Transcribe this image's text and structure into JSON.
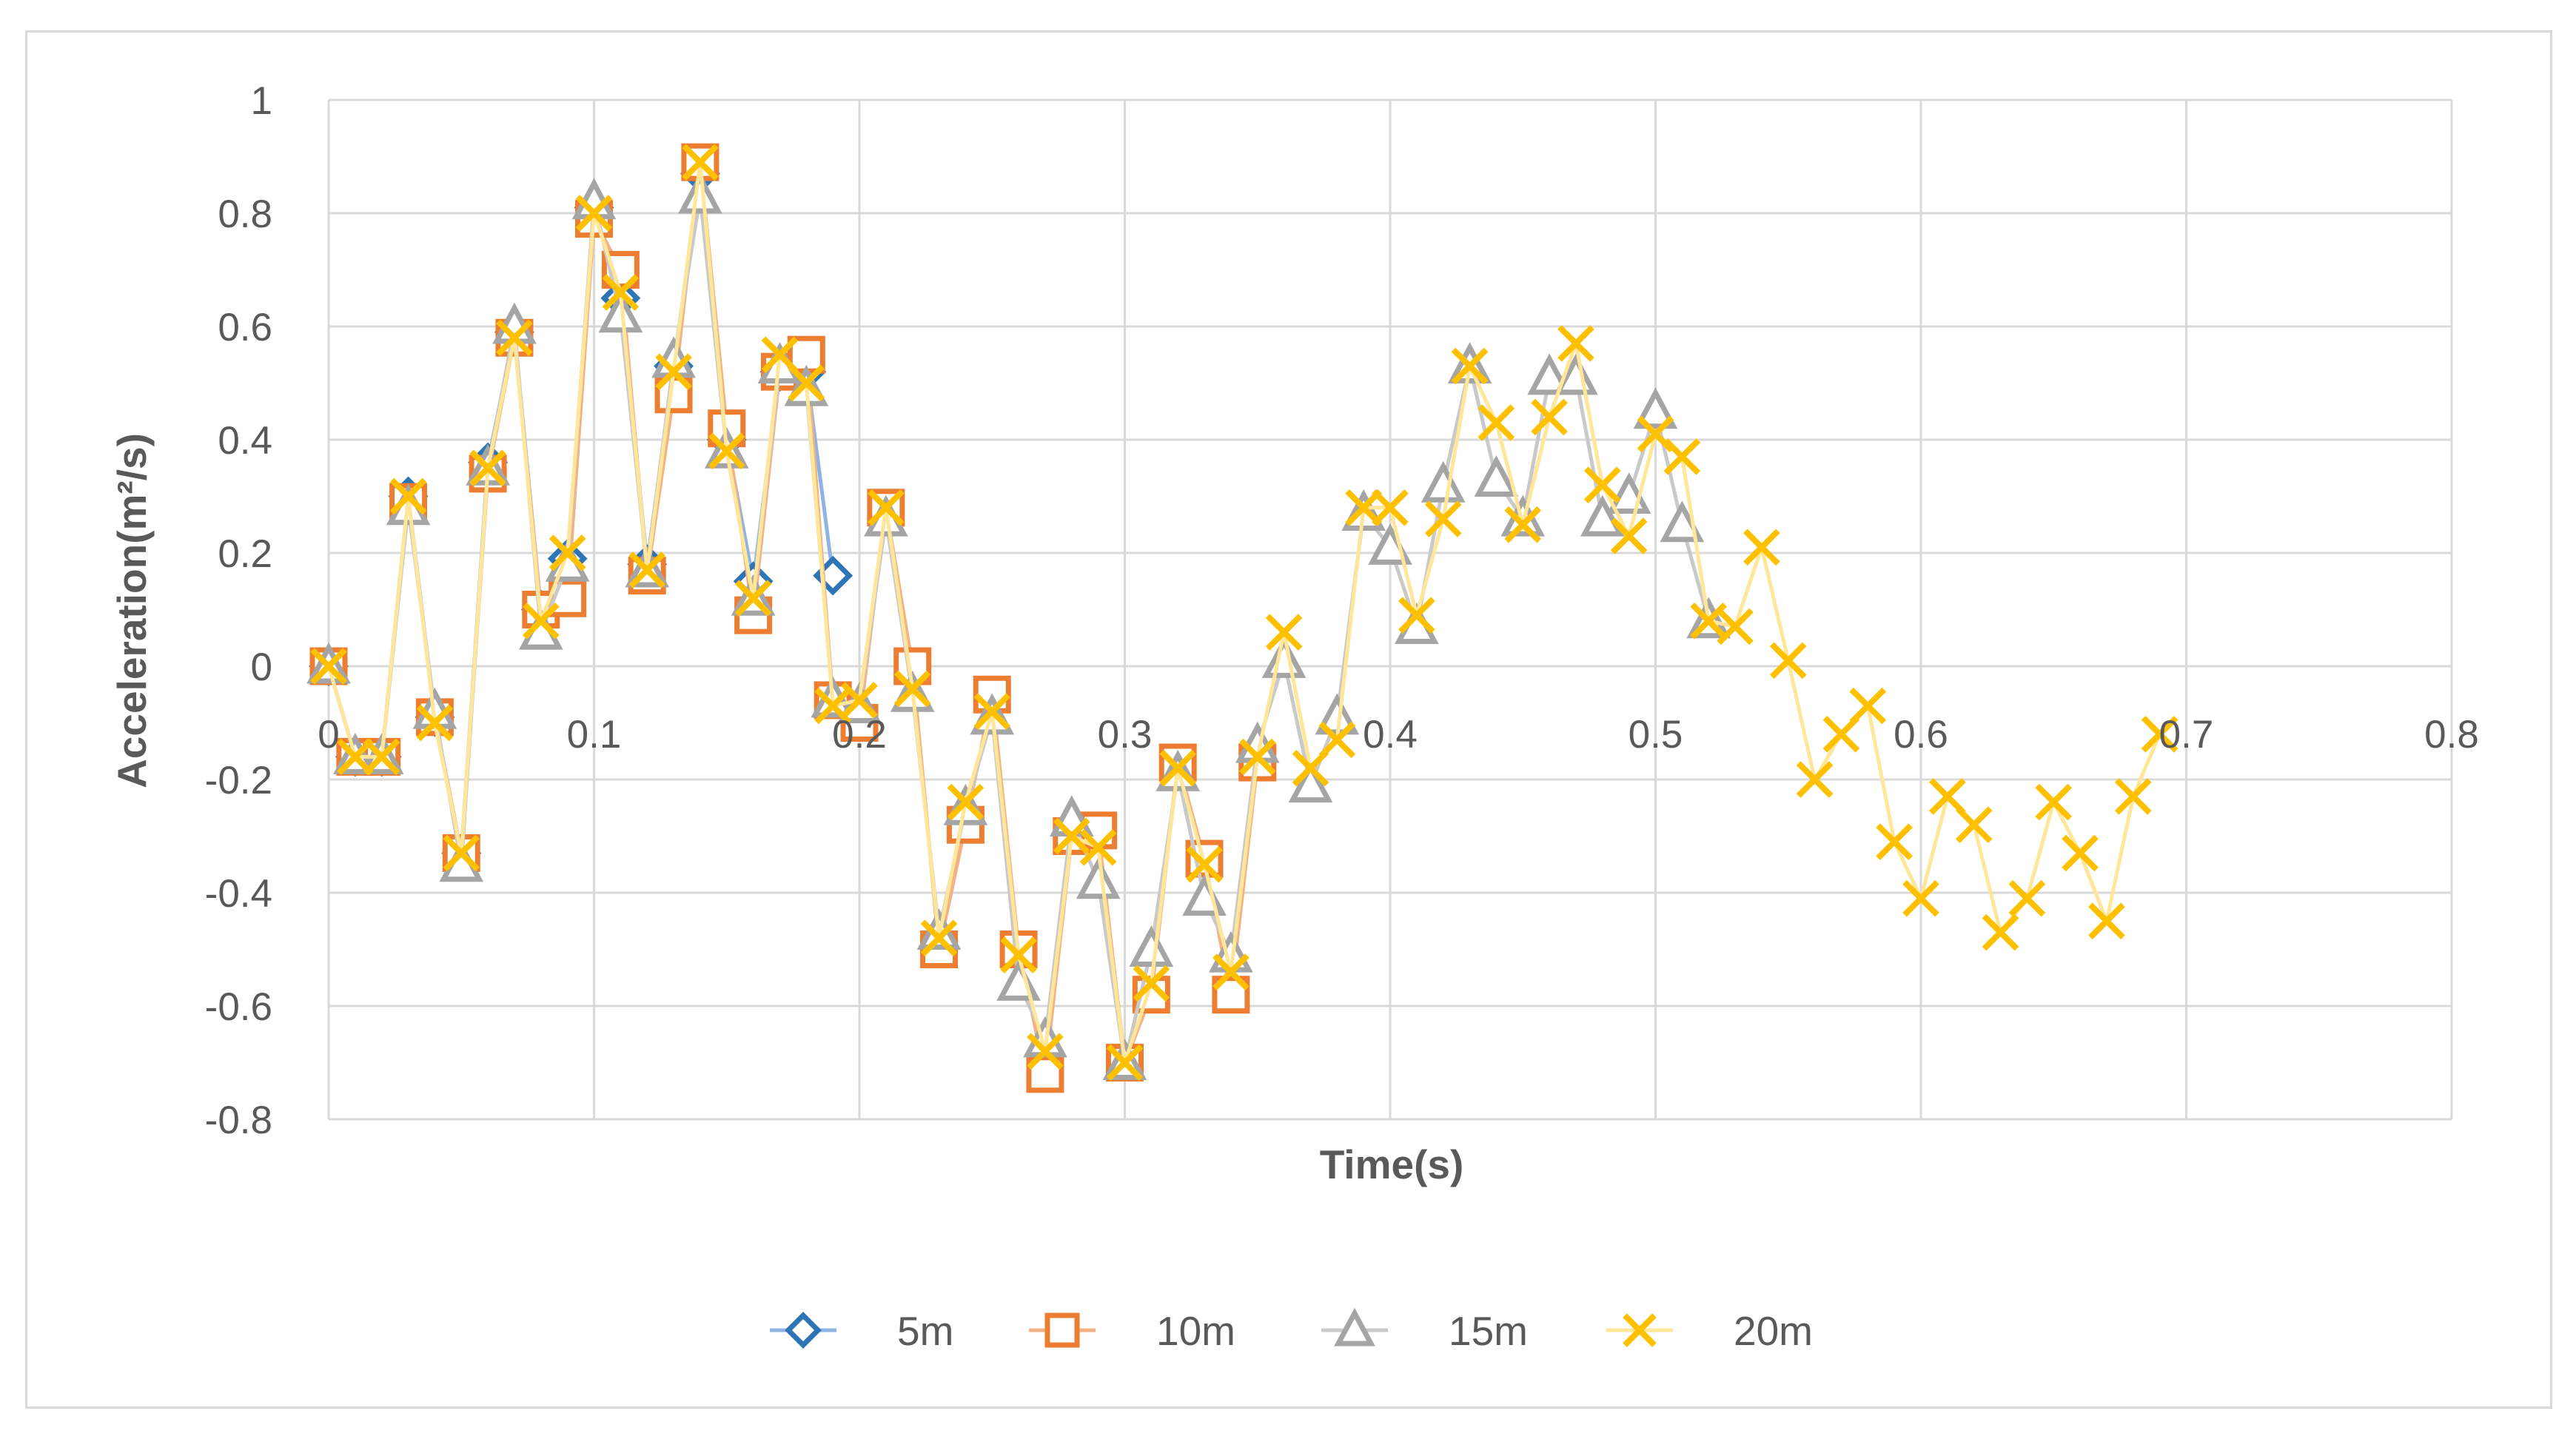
{
  "chart_data": {
    "type": "line",
    "title": "",
    "xlabel": "Time(s)",
    "ylabel": "Acceleration(m²/s)",
    "xlim": [
      0,
      0.8
    ],
    "ylim": [
      -0.8,
      1
    ],
    "x_ticks": [
      "0",
      "0.1",
      "0.2",
      "0.3",
      "0.4",
      "0.5",
      "0.6",
      "0.7",
      "0.8"
    ],
    "y_ticks": [
      "1",
      "0.8",
      "0.6",
      "0.4",
      "0.2",
      "0",
      "-0.2",
      "-0.4",
      "-0.6",
      "-0.8"
    ],
    "grid": true,
    "legend_position": "bottom",
    "series": [
      {
        "name": "5m",
        "marker": "diamond",
        "line_color": "#8fb4e3",
        "marker_color": "#2e75b6",
        "x": [
          0,
          0.01,
          0.02,
          0.03,
          0.04,
          0.05,
          0.06,
          0.07,
          0.08,
          0.09,
          0.1,
          0.11,
          0.12,
          0.13,
          0.14,
          0.15,
          0.16,
          0.17,
          0.18,
          0.19
        ],
        "y": [
          0.0,
          -0.16,
          -0.16,
          0.3,
          -0.09,
          -0.33,
          0.36,
          0.59,
          0.1,
          0.19,
          0.81,
          0.65,
          0.18,
          0.53,
          0.87,
          0.4,
          0.15,
          0.52,
          0.52,
          0.16
        ]
      },
      {
        "name": "10m",
        "marker": "square",
        "line_color": "#f4b183",
        "marker_color": "#ed7d31",
        "x": [
          0,
          0.01,
          0.02,
          0.03,
          0.04,
          0.05,
          0.06,
          0.07,
          0.08,
          0.09,
          0.1,
          0.11,
          0.12,
          0.13,
          0.14,
          0.15,
          0.16,
          0.17,
          0.18,
          0.19,
          0.2,
          0.21,
          0.22,
          0.23,
          0.24,
          0.25,
          0.26,
          0.27,
          0.28,
          0.29,
          0.3,
          0.31,
          0.32,
          0.33,
          0.34,
          0.35
        ],
        "y": [
          0.0,
          -0.16,
          -0.16,
          0.29,
          -0.09,
          -0.33,
          0.34,
          0.58,
          0.1,
          0.12,
          0.79,
          0.7,
          0.16,
          0.48,
          0.89,
          0.42,
          0.09,
          0.52,
          0.55,
          -0.06,
          -0.1,
          0.28,
          0.0,
          -0.5,
          -0.28,
          -0.05,
          -0.5,
          -0.72,
          -0.3,
          -0.29,
          -0.7,
          -0.58,
          -0.17,
          -0.34,
          -0.58,
          -0.17
        ]
      },
      {
        "name": "15m",
        "marker": "triangle",
        "line_color": "#c9c9c9",
        "marker_color": "#a5a5a5",
        "x": [
          0,
          0.01,
          0.02,
          0.03,
          0.04,
          0.05,
          0.06,
          0.07,
          0.08,
          0.09,
          0.1,
          0.11,
          0.12,
          0.13,
          0.14,
          0.15,
          0.16,
          0.17,
          0.18,
          0.19,
          0.2,
          0.21,
          0.22,
          0.23,
          0.24,
          0.25,
          0.26,
          0.27,
          0.28,
          0.29,
          0.3,
          0.31,
          0.32,
          0.33,
          0.34,
          0.35,
          0.36,
          0.37,
          0.38,
          0.39,
          0.4,
          0.41,
          0.42,
          0.43,
          0.44,
          0.45,
          0.46,
          0.47,
          0.48,
          0.49,
          0.5,
          0.51,
          0.52
        ],
        "y": [
          0.0,
          -0.16,
          -0.16,
          0.28,
          -0.08,
          -0.35,
          0.35,
          0.6,
          0.06,
          0.18,
          0.82,
          0.62,
          0.17,
          0.54,
          0.83,
          0.38,
          0.12,
          0.53,
          0.49,
          -0.06,
          -0.07,
          0.26,
          -0.05,
          -0.47,
          -0.25,
          -0.09,
          -0.56,
          -0.66,
          -0.27,
          -0.38,
          -0.7,
          -0.5,
          -0.19,
          -0.41,
          -0.51,
          -0.14,
          0.01,
          -0.21,
          -0.09,
          0.27,
          0.21,
          0.07,
          0.32,
          0.53,
          0.33,
          0.26,
          0.51,
          0.51,
          0.26,
          0.3,
          0.45,
          0.25,
          0.08
        ]
      },
      {
        "name": "20m",
        "marker": "x",
        "line_color": "#ffe699",
        "marker_color": "#ffc000",
        "x": [
          0,
          0.01,
          0.02,
          0.03,
          0.04,
          0.05,
          0.06,
          0.07,
          0.08,
          0.09,
          0.1,
          0.11,
          0.12,
          0.13,
          0.14,
          0.15,
          0.16,
          0.17,
          0.18,
          0.19,
          0.2,
          0.21,
          0.22,
          0.23,
          0.24,
          0.25,
          0.26,
          0.27,
          0.28,
          0.29,
          0.3,
          0.31,
          0.32,
          0.33,
          0.34,
          0.35,
          0.36,
          0.37,
          0.38,
          0.39,
          0.4,
          0.41,
          0.42,
          0.43,
          0.44,
          0.45,
          0.46,
          0.47,
          0.48,
          0.49,
          0.5,
          0.51,
          0.52,
          0.53,
          0.54,
          0.55,
          0.56,
          0.57,
          0.58,
          0.59,
          0.6,
          0.61,
          0.62,
          0.63,
          0.64,
          0.65,
          0.66,
          0.67,
          0.68,
          0.69
        ],
        "y": [
          0.0,
          -0.16,
          -0.16,
          0.3,
          -0.1,
          -0.33,
          0.35,
          0.58,
          0.08,
          0.2,
          0.8,
          0.66,
          0.17,
          0.52,
          0.89,
          0.38,
          0.12,
          0.55,
          0.5,
          -0.07,
          -0.06,
          0.28,
          -0.04,
          -0.48,
          -0.24,
          -0.08,
          -0.51,
          -0.68,
          -0.3,
          -0.32,
          -0.7,
          -0.56,
          -0.18,
          -0.35,
          -0.54,
          -0.16,
          0.06,
          -0.18,
          -0.13,
          0.28,
          0.28,
          0.09,
          0.26,
          0.53,
          0.43,
          0.25,
          0.44,
          0.57,
          0.32,
          0.23,
          0.41,
          0.37,
          0.08,
          0.07,
          0.21,
          0.01,
          -0.2,
          -0.12,
          -0.07,
          -0.31,
          -0.41,
          -0.23,
          -0.28,
          -0.47,
          -0.41,
          -0.24,
          -0.33,
          -0.45,
          -0.23,
          -0.12
        ]
      }
    ]
  }
}
